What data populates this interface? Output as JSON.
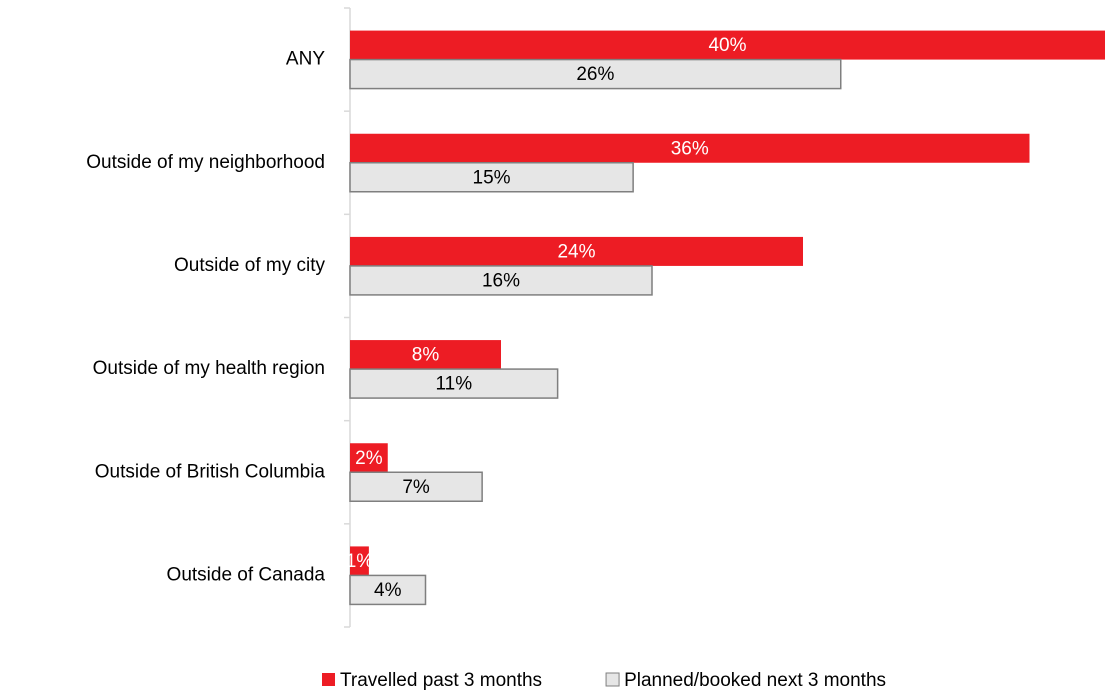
{
  "chart_data": {
    "type": "bar",
    "orientation": "horizontal",
    "categories": [
      "ANY",
      "Outside of my neighborhood",
      "Outside of my city",
      "Outside of my health region",
      "Outside of British Columbia",
      "Outside of Canada"
    ],
    "series": [
      {
        "name": "Travelled past 3 months",
        "color": "#ed1c24",
        "values": [
          40,
          36,
          24,
          8,
          2,
          1
        ],
        "value_labels": [
          "40%",
          "36%",
          "24%",
          "8%",
          "2%",
          "1%"
        ]
      },
      {
        "name": "Planned/booked next 3 months",
        "color": "#e6e6e6",
        "values": [
          26,
          15,
          16,
          11,
          7,
          4
        ],
        "value_labels": [
          "26%",
          "15%",
          "16%",
          "11%",
          "7%",
          "4%"
        ]
      }
    ],
    "xlim": [
      0,
      40
    ],
    "legend": "bottom"
  }
}
